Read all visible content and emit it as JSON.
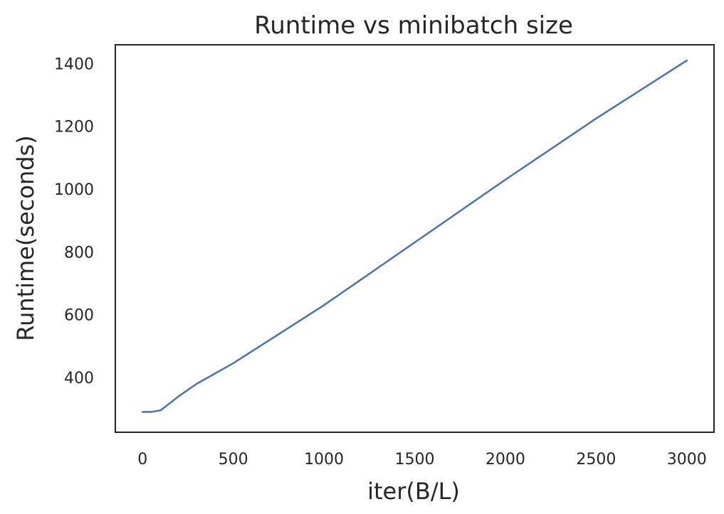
{
  "chart_data": {
    "type": "line",
    "title": "Runtime vs minibatch size",
    "xlabel": "iter(B/L)",
    "ylabel": "Runtime(seconds)",
    "xlim": [
      -150,
      3150
    ],
    "ylim": [
      225,
      1460
    ],
    "xticks": [
      0,
      500,
      1000,
      1500,
      2000,
      2500,
      3000
    ],
    "xtick_labels": [
      "0",
      "500",
      "1000",
      "1500",
      "2000",
      "2500",
      "3000"
    ],
    "yticks": [
      400,
      600,
      800,
      1000,
      1200,
      1400
    ],
    "ytick_labels": [
      "400",
      "600",
      "800",
      "1000",
      "1200",
      "1400"
    ],
    "grid": false,
    "line_color": "#4c72b0",
    "series": [
      {
        "x": [
          0,
          50,
          100,
          200,
          300,
          500,
          1000,
          1500,
          2000,
          2500,
          3000
        ],
        "values": [
          290,
          290,
          295,
          340,
          380,
          445,
          630,
          830,
          1030,
          1225,
          1410
        ]
      }
    ]
  }
}
